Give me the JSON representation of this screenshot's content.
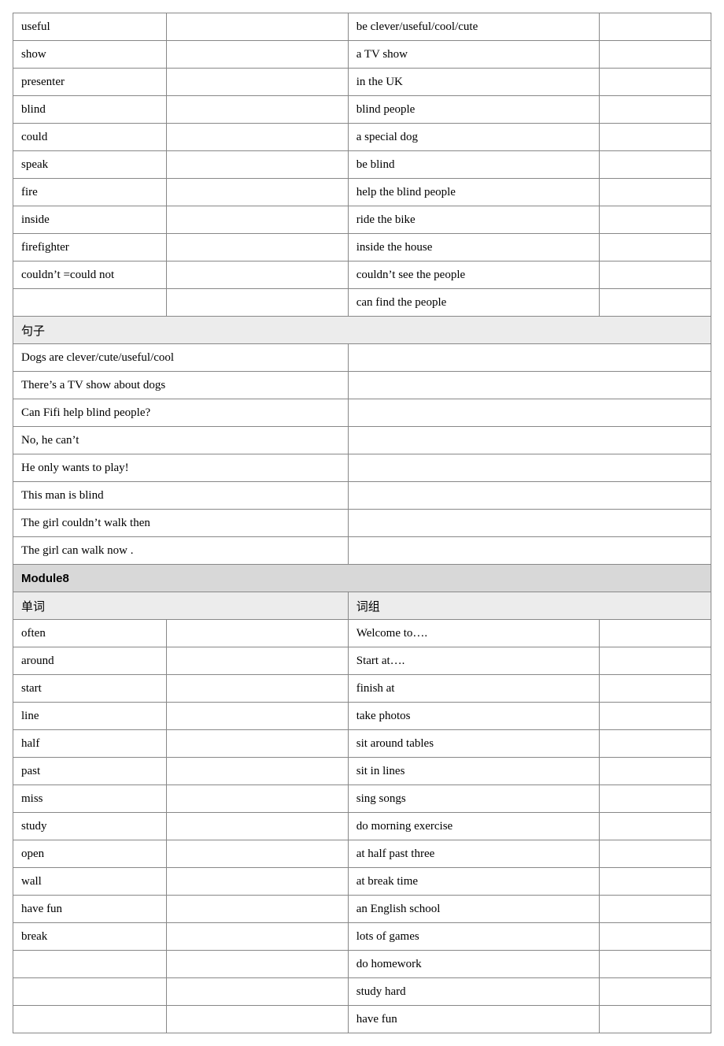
{
  "vocab7": {
    "rows": [
      {
        "word": "useful",
        "phrase": "be clever/useful/cool/cute"
      },
      {
        "word": "show",
        "phrase": "a TV show"
      },
      {
        "word": "presenter",
        "phrase": "in the UK"
      },
      {
        "word": "blind",
        "phrase": "blind people"
      },
      {
        "word": "could",
        "phrase": "a special dog"
      },
      {
        "word": "speak",
        "phrase": "be blind"
      },
      {
        "word": "fire",
        "phrase": "help the blind people"
      },
      {
        "word": "inside",
        "phrase": "ride the bike"
      },
      {
        "word": "firefighter",
        "phrase": "inside the house"
      },
      {
        "word": "couldn’t =could not",
        "phrase": "couldn’t see the people"
      },
      {
        "word": "",
        "phrase": "can find the people"
      }
    ]
  },
  "sentHeader7": "句子",
  "sentences7": [
    "Dogs are clever/cute/useful/cool",
    "There’s a TV show about dogs",
    "Can Fifi help blind people?",
    "No, he can’t",
    "He only wants to play!",
    "This man is blind",
    "The girl couldn’t walk then",
    "The girl can walk now ."
  ],
  "module8": {
    "title": "Module8",
    "colHeaders": {
      "word": "单词",
      "phrase": "词组"
    }
  },
  "vocab8": {
    "rows": [
      {
        "word": "often",
        "phrase": "Welcome to…."
      },
      {
        "word": "around",
        "phrase": "Start at…."
      },
      {
        "word": "start",
        "phrase": "finish at"
      },
      {
        "word": "line",
        "phrase": "take photos"
      },
      {
        "word": "half",
        "phrase": "sit around tables"
      },
      {
        "word": "past",
        "phrase": "sit in lines"
      },
      {
        "word": "miss",
        "phrase": "sing songs"
      },
      {
        "word": "study",
        "phrase": "do morning exercise"
      },
      {
        "word": "open",
        "phrase": "at half past three"
      },
      {
        "word": "wall",
        "phrase": "at break time"
      },
      {
        "word": "have fun",
        "phrase": "an English school"
      },
      {
        "word": "break",
        "phrase": "lots of games"
      },
      {
        "word": "",
        "phrase": "do homework"
      },
      {
        "word": "",
        "phrase": "study hard"
      },
      {
        "word": "",
        "phrase": "have fun"
      }
    ]
  }
}
